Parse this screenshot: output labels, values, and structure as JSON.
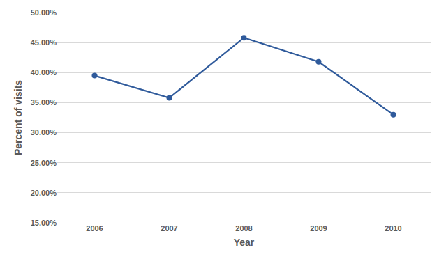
{
  "chart_data": {
    "type": "line",
    "x_label": "Year",
    "y_label": "Percent of visits",
    "categories": [
      "2006",
      "2007",
      "2008",
      "2009",
      "2010"
    ],
    "values": [
      39.5,
      35.8,
      45.8,
      41.8,
      33.0
    ],
    "color": "#2f5a9b",
    "marker": "circle",
    "ylim": [
      15,
      50
    ],
    "yticks": [
      {
        "value": 15,
        "label": "15.00%"
      },
      {
        "value": 20,
        "label": "20.00%"
      },
      {
        "value": 25,
        "label": "25.00%"
      },
      {
        "value": 30,
        "label": "30.00%"
      },
      {
        "value": 35,
        "label": "35.00%"
      },
      {
        "value": 40,
        "label": "40.00%"
      },
      {
        "value": 45,
        "label": "45.00%"
      },
      {
        "value": 50,
        "label": "50.00%"
      }
    ],
    "grid": true
  }
}
